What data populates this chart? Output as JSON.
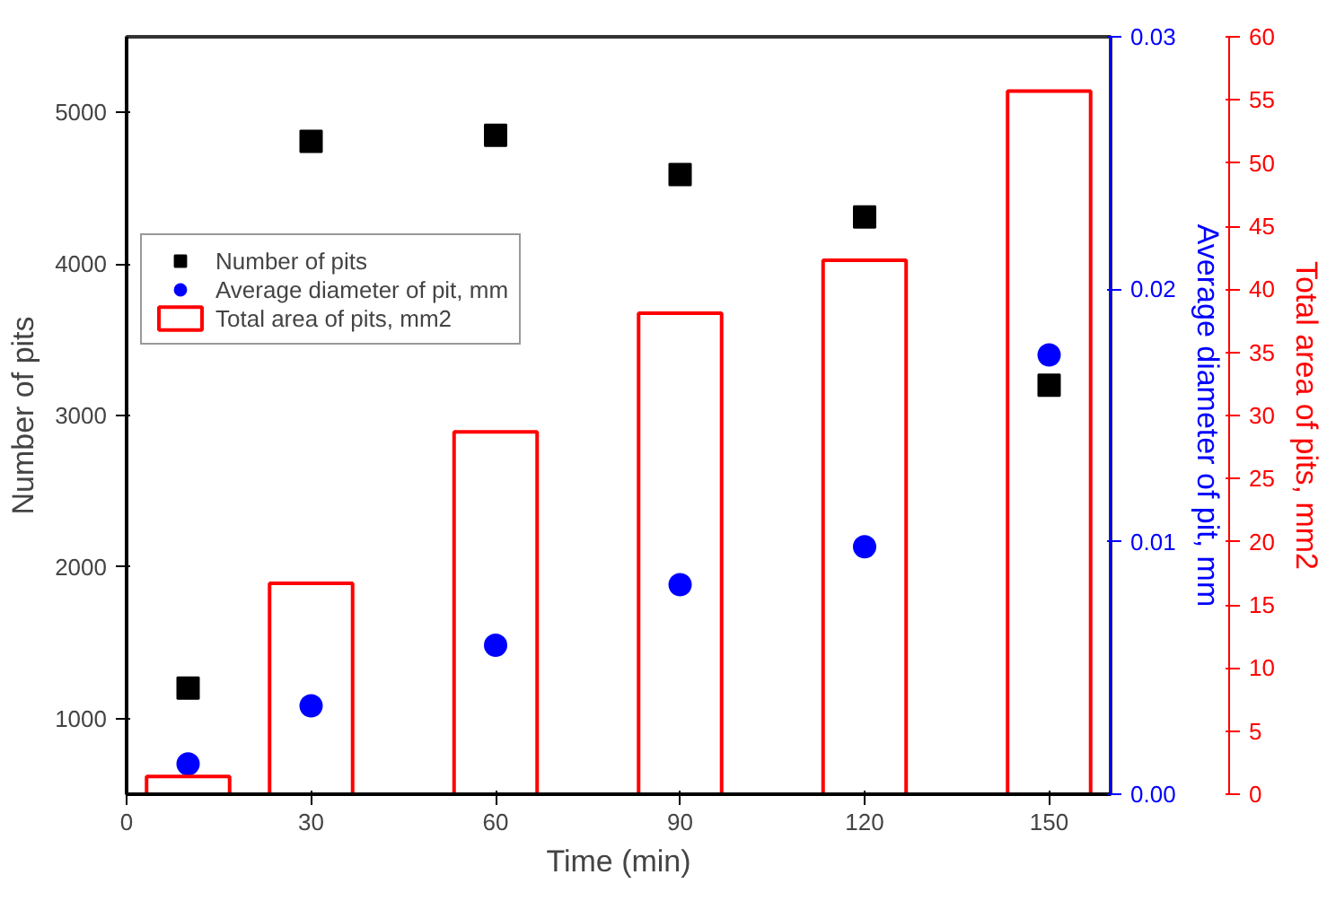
{
  "chart_data": {
    "type": "scatter",
    "xlabel": "Time (min)",
    "ylabel": "Number of pits",
    "y2label": "Average diameter of pit, mm",
    "y3label": "Total area of pits, mm2",
    "x": [
      10,
      30,
      60,
      90,
      120,
      150
    ],
    "series": [
      {
        "name": "Number of pits",
        "marker": "square",
        "color": "#000000",
        "values": [
          1200,
          4810,
          4850,
          4590,
          4310,
          3200
        ]
      },
      {
        "name": "Average diameter of pit, mm",
        "type": "scatter",
        "marker": "circle",
        "axis": "y2",
        "color": "#0000ff",
        "values": [
          0.0012,
          0.0035,
          0.0059,
          0.0083,
          0.0098,
          0.0174
        ]
      },
      {
        "name": "Total area of pits, mm2",
        "type": "bar",
        "axis": "y3",
        "color": "#ff0000",
        "values": [
          1.4,
          16.7,
          28.7,
          38.1,
          42.3,
          55.7
        ]
      }
    ],
    "xlim": [
      0,
      160
    ],
    "xticks": [
      0,
      30,
      60,
      90,
      120,
      150
    ],
    "ylim": [
      500,
      5500
    ],
    "yticks": [
      1000,
      2000,
      3000,
      4000,
      5000
    ],
    "y2lim": [
      0,
      0.03
    ],
    "y2ticks": [
      {
        "value": 0,
        "label": "0.00"
      },
      {
        "value": 0.01,
        "label": "0.01"
      },
      {
        "value": 0.02,
        "label": "0.02"
      },
      {
        "value": 0.03,
        "label": "0.03"
      }
    ],
    "y3lim": [
      0,
      60
    ],
    "y3ticks": [
      0,
      5,
      10,
      15,
      20,
      25,
      30,
      35,
      40,
      45,
      50,
      55,
      60
    ],
    "grid": false,
    "legend": "left"
  }
}
